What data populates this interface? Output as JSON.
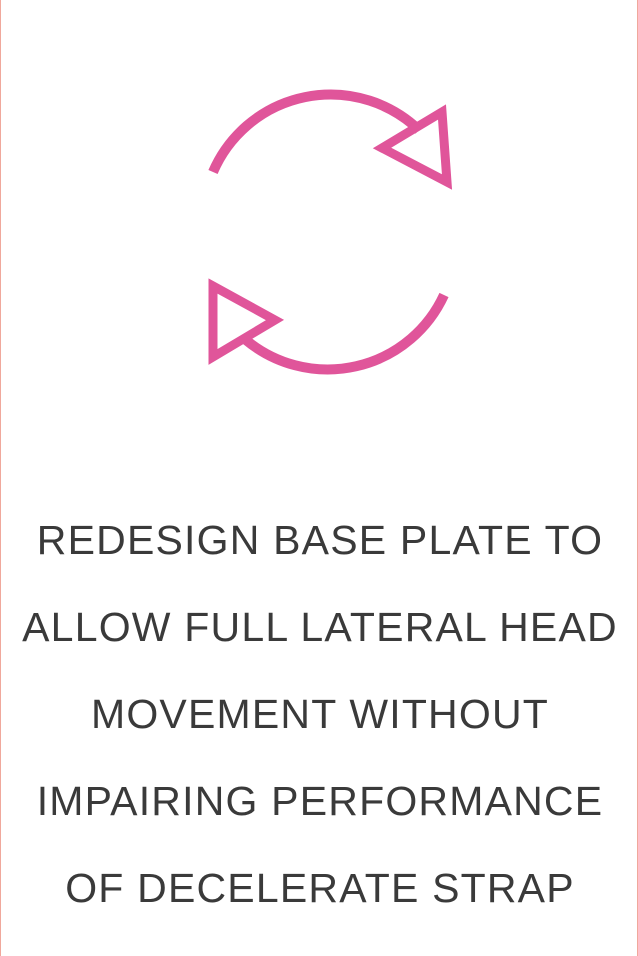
{
  "colors": {
    "accent": "#e0559a",
    "text": "#3a3a3a",
    "border": "#f0a89c"
  },
  "icon": {
    "name": "refresh-cycle-icon"
  },
  "caption": {
    "lines": [
      "REDESIGN BASE PLATE TO",
      "ALLOW FULL LATERAL HEAD",
      "MOVEMENT WITHOUT",
      "IMPAIRING PERFORMANCE",
      "OF DECELERATE STRAP"
    ]
  }
}
